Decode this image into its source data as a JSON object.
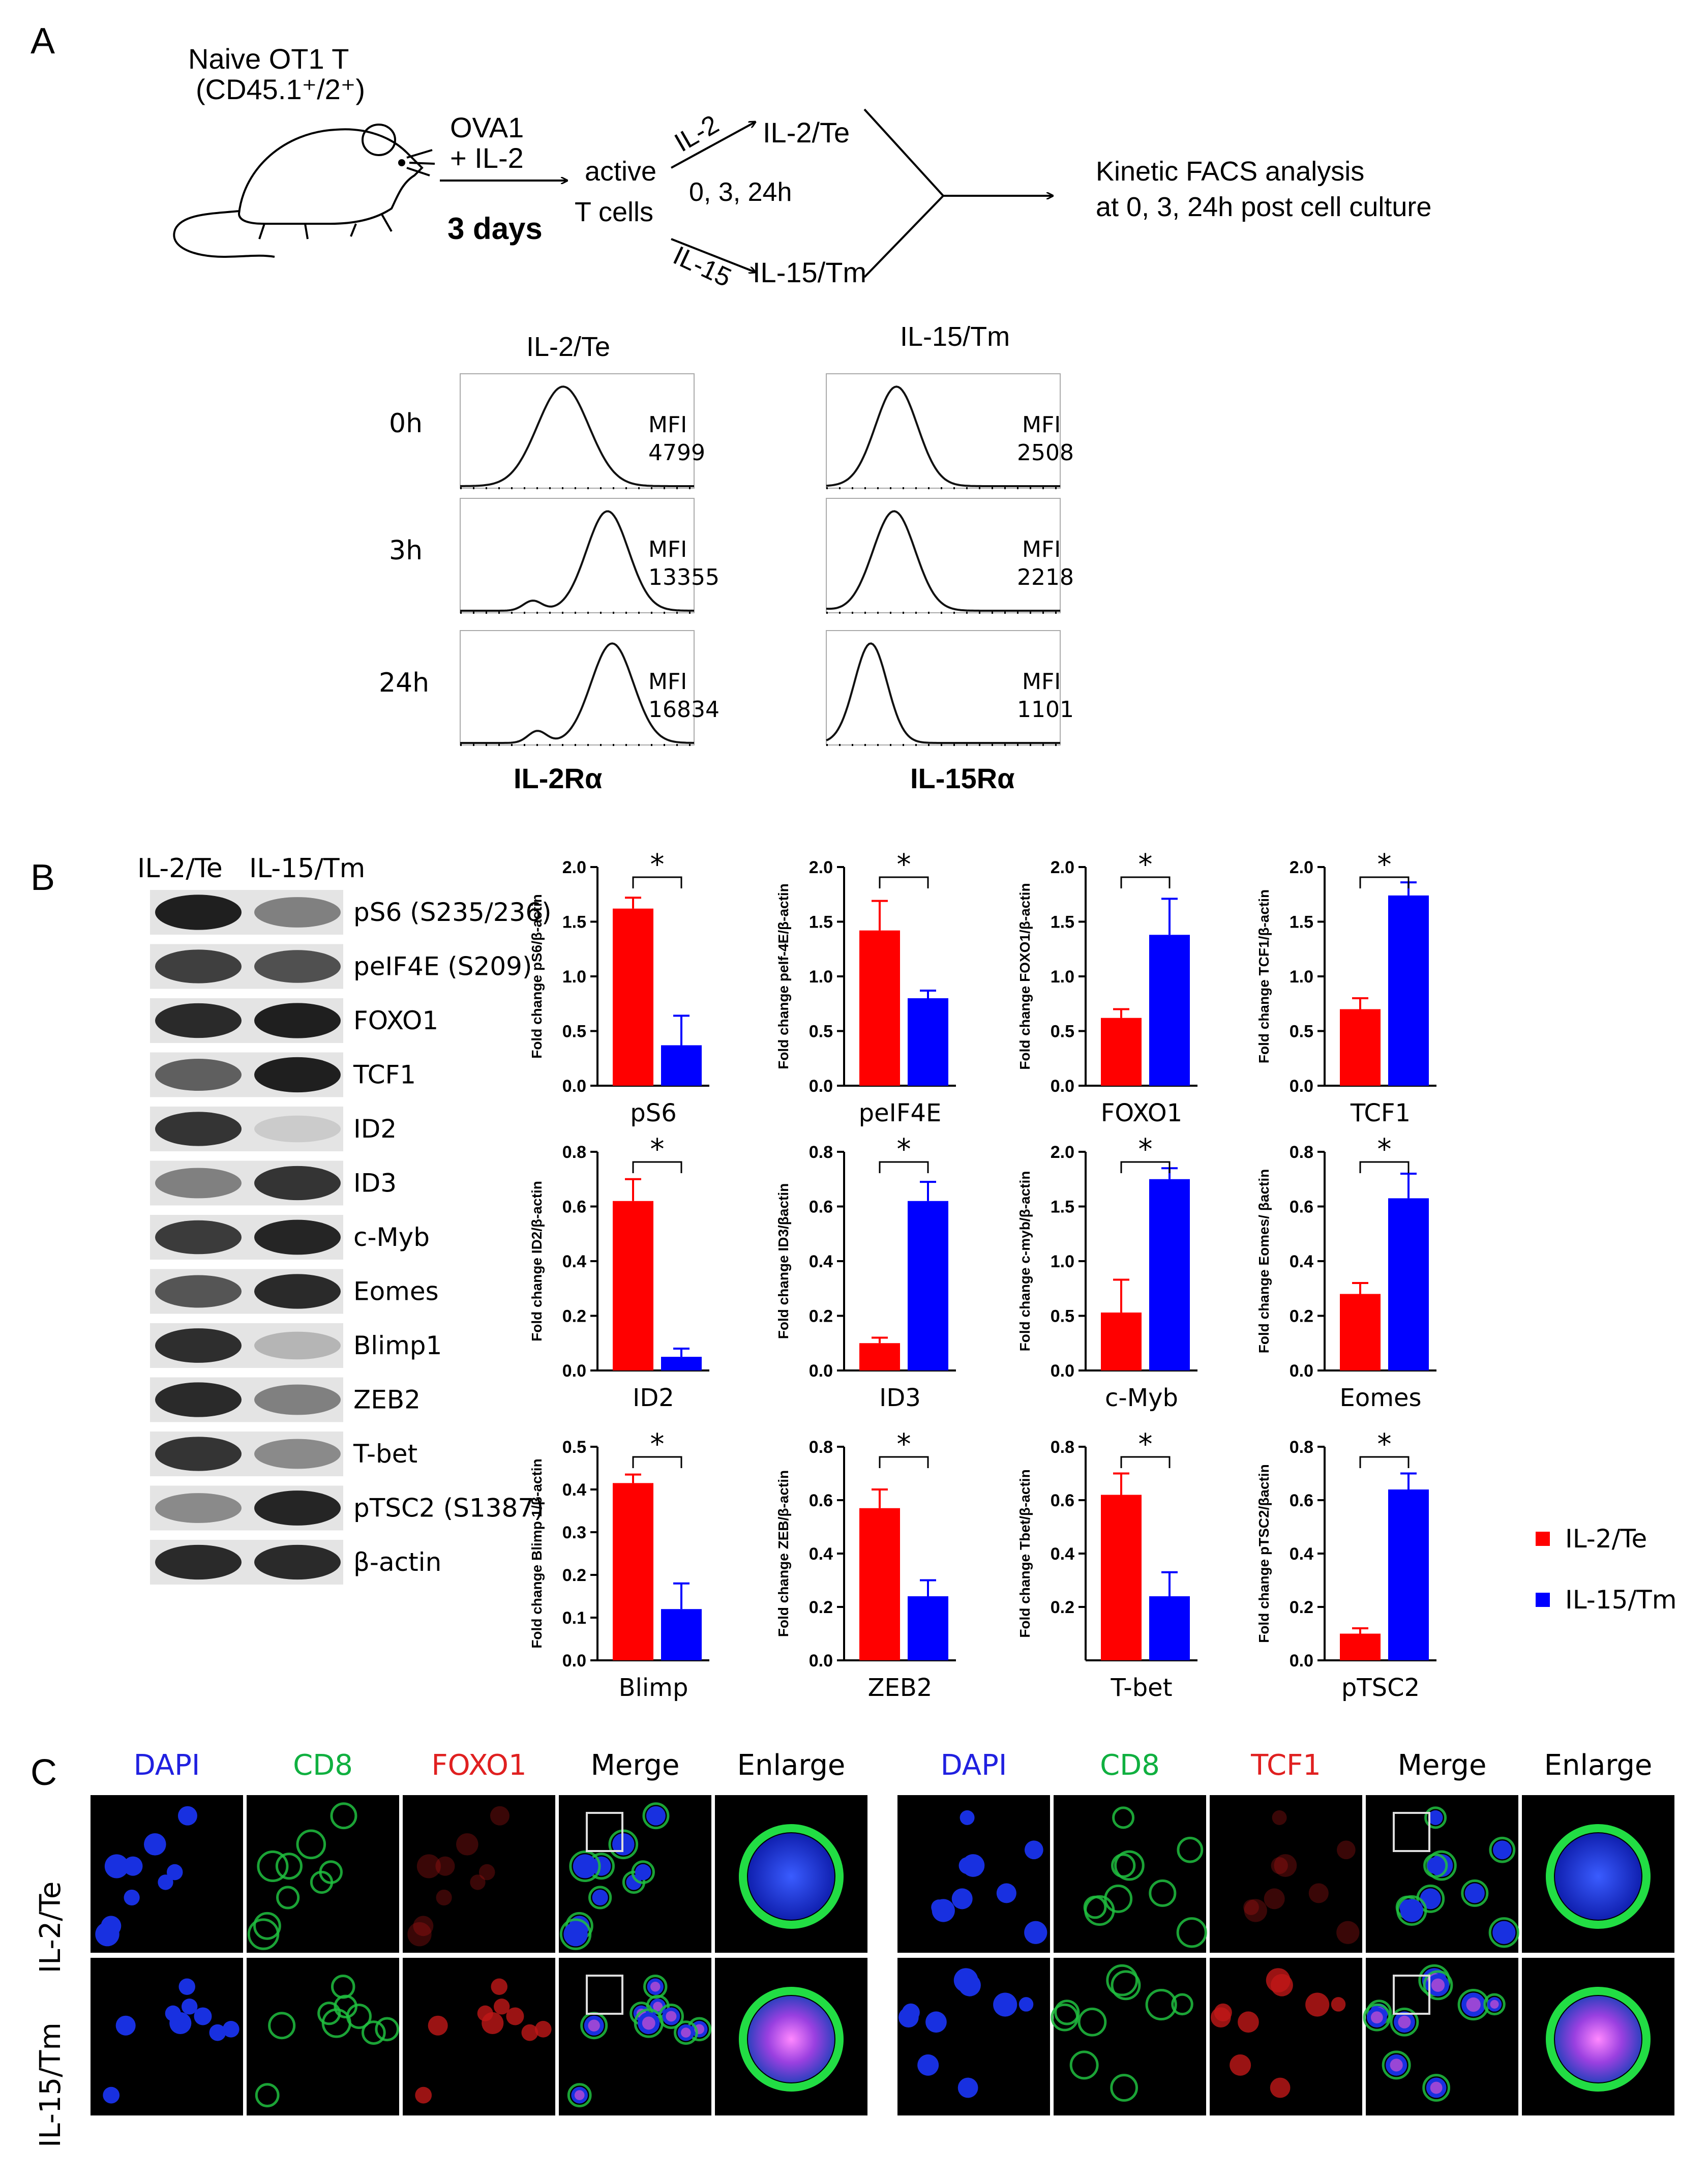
{
  "panelA": {
    "letter": "A",
    "mouse_label": [
      "Naive  OT1  T",
      "(CD45.1⁺/2⁺)"
    ],
    "step1": [
      "OVA1",
      "+ IL-2"
    ],
    "step1_days": "3 days",
    "active": [
      "active",
      "T cells"
    ],
    "branch_top": "IL-2",
    "branch_top_result": "IL-2/Te",
    "branch_bottom": "IL-15",
    "branch_bottom_result": "IL-15/Tm",
    "times": "0,  3,  24h",
    "analysis": [
      "Kinetic FACS analysis",
      "at 0,  3, 24h post cell culture"
    ],
    "hist_col_titles": [
      "IL-2/Te",
      "IL-15/Tm"
    ],
    "hist_row_labels": [
      "0h",
      "3h",
      "24h"
    ],
    "hist_xlabels": [
      "IL-2Rα",
      "IL-15Rα"
    ],
    "mfi_label": "MFI",
    "mfi_left": [
      "4799",
      "13355",
      "16834"
    ],
    "mfi_right": [
      "2508",
      "2218",
      "1101"
    ]
  },
  "panelB": {
    "letter": "B",
    "blot_columns": [
      "IL-2/Te",
      "IL-15/Tm"
    ],
    "blot_rows": [
      "pS6 (S235/236)",
      "peIF4E (S209)",
      "FOXO1",
      "TCF1",
      "ID2",
      "ID3",
      "c-Myb",
      "Eomes",
      "Blimp1",
      "ZEB2",
      "T-bet",
      "pTSC2 (S1387)",
      "β-actin"
    ],
    "legend": [
      {
        "label": "IL-2/Te",
        "color": "#ff0000"
      },
      {
        "label": "IL-15/Tm",
        "color": "#0000ff"
      }
    ],
    "sig_mark": "*"
  },
  "chart_data": [
    {
      "type": "bar",
      "ylabel": "Fold change pS6/β-actin",
      "xlabel": "pS6",
      "ylim": [
        0,
        2.0
      ],
      "yticks": [
        "0.0",
        "0.5",
        "1.0",
        "1.5",
        "2.0"
      ],
      "categories": [
        "IL-2/Te",
        "IL-15/Tm"
      ],
      "values": [
        1.62,
        0.37
      ],
      "errors": [
        0.1,
        0.27
      ],
      "colors": [
        "#ff0000",
        "#0000ff"
      ]
    },
    {
      "type": "bar",
      "ylabel": "Fold change peIf-4E/β-actin",
      "xlabel": "peIF4E",
      "ylim": [
        0,
        2.0
      ],
      "yticks": [
        "0.0",
        "0.5",
        "1.0",
        "1.5",
        "2.0"
      ],
      "categories": [
        "IL-2/Te",
        "IL-15/Tm"
      ],
      "values": [
        1.42,
        0.8
      ],
      "errors": [
        0.27,
        0.07
      ],
      "colors": [
        "#ff0000",
        "#0000ff"
      ]
    },
    {
      "type": "bar",
      "ylabel": "Fold change FOXO1/β-actin",
      "xlabel": "FOXO1",
      "ylim": [
        0,
        2.0
      ],
      "yticks": [
        "0.0",
        "0.5",
        "1.0",
        "1.5",
        "2.0"
      ],
      "categories": [
        "IL-2/Te",
        "IL-15/Tm"
      ],
      "values": [
        0.62,
        1.38
      ],
      "errors": [
        0.08,
        0.33
      ],
      "colors": [
        "#ff0000",
        "#0000ff"
      ]
    },
    {
      "type": "bar",
      "ylabel": "Fold change TCF1/β-actin",
      "xlabel": "TCF1",
      "ylim": [
        0,
        2.0
      ],
      "yticks": [
        "0.0",
        "0.5",
        "1.0",
        "1.5",
        "2.0"
      ],
      "categories": [
        "IL-2/Te",
        "IL-15/Tm"
      ],
      "values": [
        0.7,
        1.74
      ],
      "errors": [
        0.1,
        0.12
      ],
      "colors": [
        "#ff0000",
        "#0000ff"
      ]
    },
    {
      "type": "bar",
      "ylabel": "Fold change ID2/β-actin",
      "xlabel": "ID2",
      "ylim": [
        0,
        0.8
      ],
      "yticks": [
        "0.0",
        "0.2",
        "0.4",
        "0.6",
        "0.8"
      ],
      "categories": [
        "IL-2/Te",
        "IL-15/Tm"
      ],
      "values": [
        0.62,
        0.05
      ],
      "errors": [
        0.08,
        0.03
      ],
      "colors": [
        "#ff0000",
        "#0000ff"
      ]
    },
    {
      "type": "bar",
      "ylabel": "Fold change ID3/βactin",
      "xlabel": "ID3",
      "ylim": [
        0,
        0.8
      ],
      "yticks": [
        "0.0",
        "0.2",
        "0.4",
        "0.6",
        "0.8"
      ],
      "categories": [
        "IL-2/Te",
        "IL-15/Tm"
      ],
      "values": [
        0.1,
        0.62
      ],
      "errors": [
        0.02,
        0.07
      ],
      "colors": [
        "#ff0000",
        "#0000ff"
      ]
    },
    {
      "type": "bar",
      "ylabel": "Fold change c-myb/β-actin",
      "xlabel": "c-Myb",
      "ylim": [
        0,
        2.0
      ],
      "yticks": [
        "0.0",
        "0.5",
        "1.0",
        "1.5",
        "2.0"
      ],
      "categories": [
        "IL-2/Te",
        "IL-15/Tm"
      ],
      "values": [
        0.53,
        1.75
      ],
      "errors": [
        0.3,
        0.1
      ],
      "colors": [
        "#ff0000",
        "#0000ff"
      ]
    },
    {
      "type": "bar",
      "ylabel": "Fold change Eomes/ βactin",
      "xlabel": "Eomes",
      "ylim": [
        0,
        0.8
      ],
      "yticks": [
        "0.0",
        "0.2",
        "0.4",
        "0.6",
        "0.8"
      ],
      "categories": [
        "IL-2/Te",
        "IL-15/Tm"
      ],
      "values": [
        0.28,
        0.63
      ],
      "errors": [
        0.04,
        0.09
      ],
      "colors": [
        "#ff0000",
        "#0000ff"
      ]
    },
    {
      "type": "bar",
      "ylabel": "Fold change Blimp 1/β-actin",
      "xlabel": "Blimp",
      "ylim": [
        0,
        0.5
      ],
      "yticks": [
        "0.0",
        "0.1",
        "0.2",
        "0.3",
        "0.4",
        "0.5"
      ],
      "categories": [
        "IL-2/Te",
        "IL-15/Tm"
      ],
      "values": [
        0.415,
        0.12
      ],
      "errors": [
        0.02,
        0.06
      ],
      "colors": [
        "#ff0000",
        "#0000ff"
      ]
    },
    {
      "type": "bar",
      "ylabel": "Fold change ZEB/β-actin",
      "xlabel": "ZEB2",
      "ylim": [
        0,
        0.8
      ],
      "yticks": [
        "0.0",
        "0.2",
        "0.4",
        "0.6",
        "0.8"
      ],
      "categories": [
        "IL-2/Te",
        "IL-15/Tm"
      ],
      "values": [
        0.57,
        0.24
      ],
      "errors": [
        0.07,
        0.06
      ],
      "colors": [
        "#ff0000",
        "#0000ff"
      ]
    },
    {
      "type": "bar",
      "ylabel": "Fold change Tbet/β-actin",
      "xlabel": "T-bet",
      "ylim": [
        0,
        0.8
      ],
      "yticks": [
        "0.2",
        "0.4",
        "0.6",
        "0.8"
      ],
      "categories": [
        "IL-2/Te",
        "IL-15/Tm"
      ],
      "values": [
        0.62,
        0.24
      ],
      "errors": [
        0.08,
        0.09
      ],
      "colors": [
        "#ff0000",
        "#0000ff"
      ]
    },
    {
      "type": "bar",
      "ylabel": "Fold change pTSC2/βactin",
      "xlabel": "pTSC2",
      "ylim": [
        0,
        0.8
      ],
      "yticks": [
        "0.0",
        "0.2",
        "0.4",
        "0.6",
        "0.8"
      ],
      "categories": [
        "IL-2/Te",
        "IL-15/Tm"
      ],
      "values": [
        0.1,
        0.64
      ],
      "errors": [
        0.02,
        0.06
      ],
      "colors": [
        "#ff0000",
        "#0000ff"
      ]
    }
  ],
  "panelC": {
    "letter": "C",
    "left_headers": [
      {
        "label": "DAPI",
        "color": "#2020e0"
      },
      {
        "label": "CD8",
        "color": "#10b040"
      },
      {
        "label": "FOXO1",
        "color": "#e02020"
      },
      {
        "label": "Merge",
        "color": "#000000"
      },
      {
        "label": "Enlarge",
        "color": "#000000"
      }
    ],
    "right_headers": [
      {
        "label": "DAPI",
        "color": "#2020e0"
      },
      {
        "label": "CD8",
        "color": "#10b040"
      },
      {
        "label": "TCF1",
        "color": "#e02020"
      },
      {
        "label": "Merge",
        "color": "#000000"
      },
      {
        "label": "Enlarge",
        "color": "#000000"
      }
    ],
    "row_labels": [
      "IL-2/Te",
      "IL-15/Tm"
    ]
  }
}
